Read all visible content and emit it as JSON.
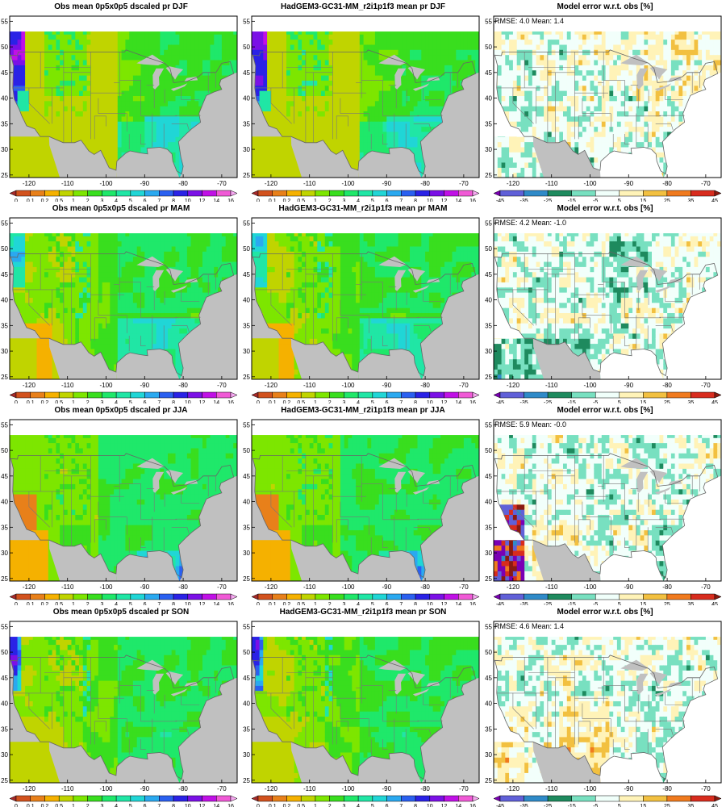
{
  "panels": [
    {
      "title": "Obs mean 0p5x0p5 dscaled pr DJF",
      "kind": "abs",
      "season": "DJF",
      "source": "obs"
    },
    {
      "title": "HadGEM3-GC31-MM_r2i1p1f3 mean pr DJF",
      "kind": "abs",
      "season": "DJF",
      "source": "model"
    },
    {
      "title": "Model error w.r.t. obs [%]",
      "kind": "err",
      "season": "DJF",
      "stats": "RMSE: 4.0  Mean: 1.4"
    },
    {
      "title": "Obs mean 0p5x0p5 dscaled pr MAM",
      "kind": "abs",
      "season": "MAM",
      "source": "obs"
    },
    {
      "title": "HadGEM3-GC31-MM_r2i1p1f3 mean pr MAM",
      "kind": "abs",
      "season": "MAM",
      "source": "model"
    },
    {
      "title": "Model error w.r.t. obs [%]",
      "kind": "err",
      "season": "MAM",
      "stats": "RMSE: 4.2  Mean: -1.0"
    },
    {
      "title": "Obs mean 0p5x0p5 dscaled pr JJA",
      "kind": "abs",
      "season": "JJA",
      "source": "obs"
    },
    {
      "title": "HadGEM3-GC31-MM_r2i1p1f3 mean pr JJA",
      "kind": "abs",
      "season": "JJA",
      "source": "model"
    },
    {
      "title": "Model error w.r.t. obs [%]",
      "kind": "err",
      "season": "JJA",
      "stats": "RMSE: 5.9  Mean: -0.0"
    },
    {
      "title": "Obs mean 0p5x0p5 dscaled pr SON",
      "kind": "abs",
      "season": "SON",
      "source": "obs"
    },
    {
      "title": "HadGEM3-GC31-MM_r2i1p1f3 mean pr SON",
      "kind": "abs",
      "season": "SON",
      "source": "model"
    },
    {
      "title": "Model error w.r.t. obs [%]",
      "kind": "err",
      "season": "SON",
      "stats": "RMSE: 4.6  Mean: 1.4"
    }
  ],
  "axes": {
    "lon_ticks": [
      "-120",
      "-110",
      "-100",
      "-90",
      "-80",
      "-70"
    ],
    "lat_ticks": [
      "55",
      "50",
      "45",
      "40",
      "35",
      "30",
      "25"
    ],
    "lon_range": [
      -125,
      -66
    ],
    "lat_range": [
      24.5,
      56
    ]
  },
  "colorbars": {
    "abs": {
      "labels": [
        "0",
        "0.1",
        "0.2",
        "0.5",
        "1",
        "2",
        "3",
        "4",
        "5",
        "6",
        "7",
        "8",
        "10",
        "12",
        "14",
        "16"
      ],
      "colors": [
        "#a52a2a",
        "#d2521e",
        "#e8801a",
        "#f5b100",
        "#c0d400",
        "#7de600",
        "#39de1e",
        "#1fe86a",
        "#20e6a5",
        "#20d6d6",
        "#2aa9f0",
        "#2a60f0",
        "#2a22e6",
        "#7b10e6",
        "#c010e6",
        "#f05ad6",
        "#f5a8f0"
      ]
    },
    "err": {
      "labels": [
        "-45",
        "-35",
        "-25",
        "-15",
        "-5",
        "5",
        "15",
        "25",
        "35",
        "45"
      ],
      "colors": [
        "#7a00b4",
        "#6060d8",
        "#2f8ac8",
        "#1e8a5e",
        "#78e0c0",
        "#f0fffa",
        "#fff3b8",
        "#f2c040",
        "#f07a1e",
        "#d82c1e",
        "#8a1a10"
      ]
    }
  },
  "palette": {
    "land_mask": "#c0c0c0",
    "background_err": "#f2fffb",
    "ocean_gray": "#bdbdbd"
  }
}
